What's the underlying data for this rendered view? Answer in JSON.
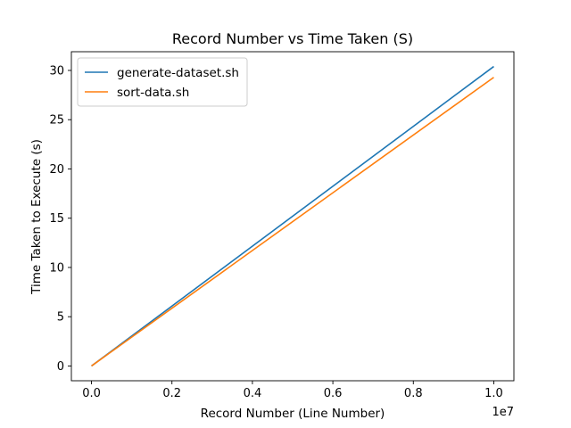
{
  "chart_data": {
    "type": "line",
    "title": "Record Number vs Time Taken (S)",
    "xlabel": "Record Number (Line Number)",
    "ylabel": "Time Taken to Execute (s)",
    "x_offset_label": "1e7",
    "xlim": [
      -500000,
      10500000
    ],
    "ylim": [
      -1.5,
      31.9
    ],
    "x_ticks": [
      0,
      2000000,
      4000000,
      6000000,
      8000000,
      10000000
    ],
    "x_tick_labels": [
      "0.0",
      "0.2",
      "0.4",
      "0.6",
      "0.8",
      "1.0"
    ],
    "y_ticks": [
      0,
      5,
      10,
      15,
      20,
      25,
      30
    ],
    "y_tick_labels": [
      "0",
      "5",
      "10",
      "15",
      "20",
      "25",
      "30"
    ],
    "grid": false,
    "legend_position": "upper-left",
    "series": [
      {
        "name": "generate-dataset.sh",
        "color": "#1f77b4",
        "x": [
          0,
          10000000
        ],
        "y": [
          0,
          30.4
        ]
      },
      {
        "name": "sort-data.sh",
        "color": "#ff7f0e",
        "x": [
          0,
          10000000
        ],
        "y": [
          0,
          29.3
        ]
      }
    ]
  }
}
